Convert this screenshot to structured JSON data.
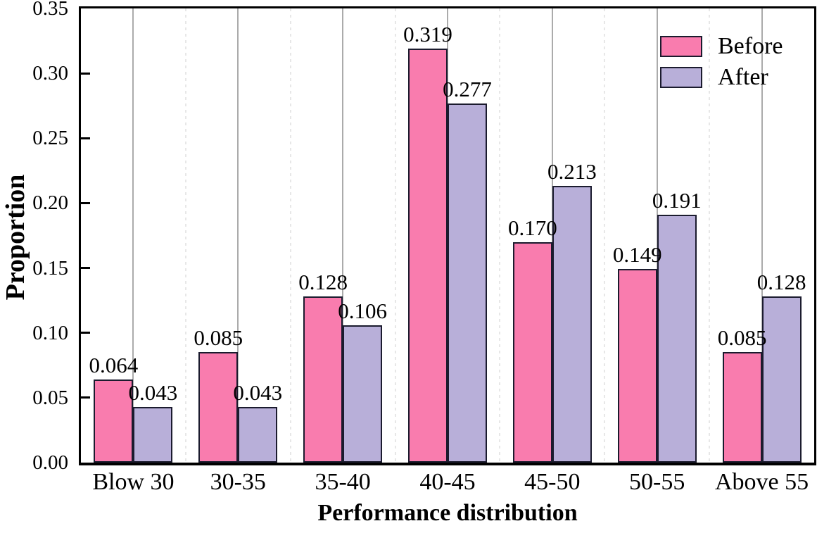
{
  "chart_data": {
    "type": "bar",
    "title": "",
    "xlabel": "Performance distribution",
    "ylabel": "Proportion",
    "categories": [
      "Blow 30",
      "30-35",
      "35-40",
      "40-45",
      "45-50",
      "50-55",
      "Above 55"
    ],
    "series": [
      {
        "name": "Before",
        "color": "#F97CAE",
        "values": [
          0.064,
          0.085,
          0.128,
          0.319,
          0.17,
          0.149,
          0.085
        ],
        "labels": [
          "0.064",
          "0.085",
          "0.128",
          "0.319",
          "0.170",
          "0.149",
          "0.085"
        ]
      },
      {
        "name": "After",
        "color": "#B8AFD9",
        "values": [
          0.043,
          0.043,
          0.106,
          0.277,
          0.213,
          0.191,
          0.128
        ],
        "labels": [
          "0.043",
          "0.043",
          "0.106",
          "0.277",
          "0.213",
          "0.191",
          "0.128"
        ]
      }
    ],
    "ylim": [
      0,
      0.35
    ],
    "yticks": [
      0.0,
      0.05,
      0.1,
      0.15,
      0.2,
      0.25,
      0.3,
      0.35
    ],
    "ytick_labels": [
      "0.00",
      "0.05",
      "0.10",
      "0.15",
      "0.20",
      "0.25",
      "0.30",
      "0.35"
    ],
    "grid": "vertical: solid gray lines at category centers, light dashed lines at category boundaries",
    "legend_position": "upper-right",
    "style": {
      "bar_edge_color": "#1b1b2e",
      "axis_color": "#000000",
      "grid_solid_color": "#ababab",
      "grid_dashed_color": "#e7e7e7",
      "background": "#ffffff"
    }
  }
}
